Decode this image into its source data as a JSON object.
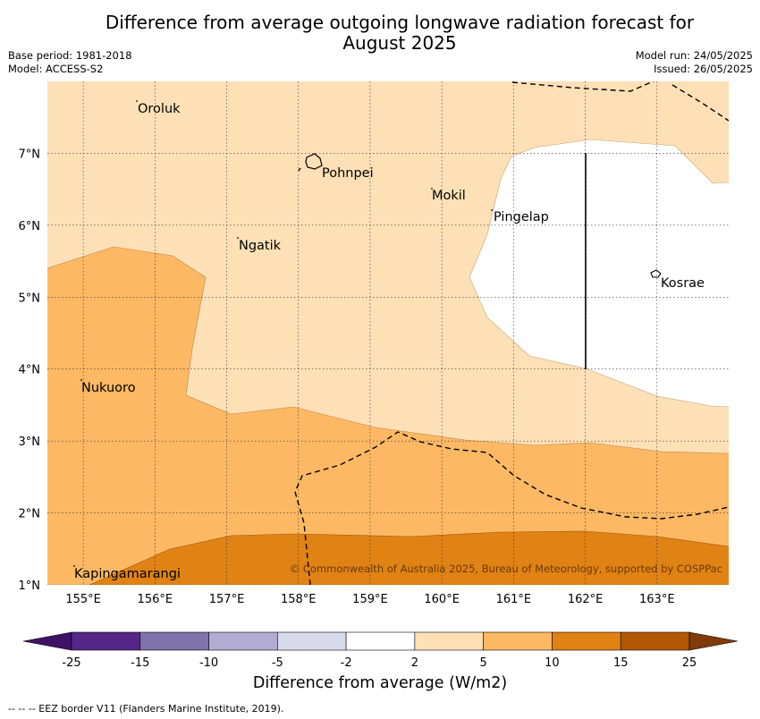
{
  "title": {
    "line1": "Difference from average outgoing longwave radiation forecast for",
    "line2": "August 2025"
  },
  "meta_left": {
    "base_period": "Base period: 1981-2018",
    "model": "Model: ACCESS-S2"
  },
  "meta_right": {
    "model_run": "Model run: 24/05/2025",
    "issued": "Issued: 26/05/2025"
  },
  "map": {
    "lon_range": [
      154.5,
      164.0
    ],
    "lat_range": [
      1.0,
      8.0
    ],
    "lon_ticks": [
      "155°E",
      "156°E",
      "157°E",
      "158°E",
      "159°E",
      "160°E",
      "161°E",
      "162°E",
      "163°E"
    ],
    "lat_ticks": [
      "1°N",
      "2°N",
      "3°N",
      "4°N",
      "5°N",
      "6°N",
      "7°N"
    ],
    "gridlines": true,
    "places": [
      {
        "name": "Oroluk"
      },
      {
        "name": "Pohnpei"
      },
      {
        "name": "Mokil"
      },
      {
        "name": "Pingelap"
      },
      {
        "name": "Ngatik"
      },
      {
        "name": "Kosrae"
      },
      {
        "name": "Nukuoro"
      },
      {
        "name": "Kapingamarangi"
      }
    ],
    "copyright": "© Commonwealth of Australia 2025, Bureau of Meteorology, supported by COSPPac"
  },
  "colorbar": {
    "tick_labels": [
      "-25",
      "-15",
      "-10",
      "-5",
      "-2",
      "2",
      "5",
      "10",
      "15",
      "25"
    ],
    "colors": [
      "#3f1265",
      "#542788",
      "#8073ac",
      "#b2abd2",
      "#d8daeb",
      "#ffffff",
      "#fee0b6",
      "#fdb863",
      "#e08214",
      "#b35806",
      "#7f3b08"
    ],
    "label": "Difference from average (W/m2)"
  },
  "footnote": "--  --  -- EEZ border V11 (Flanders Marine Institute, 2019)."
}
